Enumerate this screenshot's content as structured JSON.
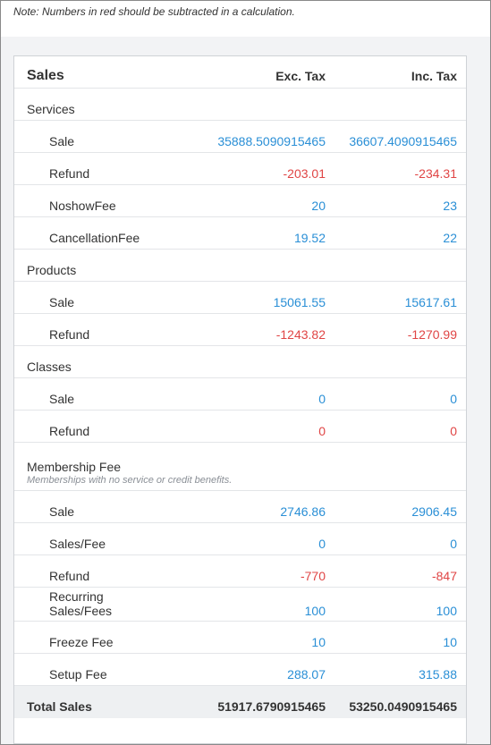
{
  "note": "Note: Numbers in red should be subtracted in a calculation.",
  "header": {
    "title": "Sales",
    "col_exc": "Exc. Tax",
    "col_inc": "Inc. Tax"
  },
  "services": {
    "title": "Services",
    "rows": [
      {
        "label": "Sale",
        "exc": "35888.5090915465",
        "inc": "36607.4090915465"
      },
      {
        "label": "Refund",
        "exc": "-203.01",
        "inc": "-234.31"
      },
      {
        "label": "NoshowFee",
        "exc": "20",
        "inc": "23"
      },
      {
        "label": "CancellationFee",
        "exc": "19.52",
        "inc": "22"
      }
    ]
  },
  "products": {
    "title": "Products",
    "rows": [
      {
        "label": "Sale",
        "exc": "15061.55",
        "inc": "15617.61"
      },
      {
        "label": "Refund",
        "exc": "-1243.82",
        "inc": "-1270.99"
      }
    ]
  },
  "classes": {
    "title": "Classes",
    "rows": [
      {
        "label": "Sale",
        "exc": "0",
        "inc": "0"
      },
      {
        "label": "Refund",
        "exc": "0",
        "inc": "0"
      }
    ]
  },
  "membership": {
    "title": "Membership Fee",
    "hint": "Memberships with no service or credit benefits.",
    "rows": [
      {
        "label": "Sale",
        "exc": "2746.86",
        "inc": "2906.45"
      },
      {
        "label": "Sales/Fee",
        "exc": "0",
        "inc": "0"
      },
      {
        "label": "Refund",
        "exc": "-770",
        "inc": "-847"
      },
      {
        "label_line1": "Recurring",
        "label_line2": "Sales/Fees",
        "exc": "100",
        "inc": "100"
      },
      {
        "label": "Freeze Fee",
        "exc": "10",
        "inc": "10"
      },
      {
        "label": "Setup Fee",
        "exc": "288.07",
        "inc": "315.88"
      }
    ]
  },
  "total": {
    "label": "Total Sales",
    "exc": "51917.6790915465",
    "inc": "53250.0490915465"
  },
  "colors": {
    "positive": "#2a8fd6",
    "negative": "#e04545"
  }
}
